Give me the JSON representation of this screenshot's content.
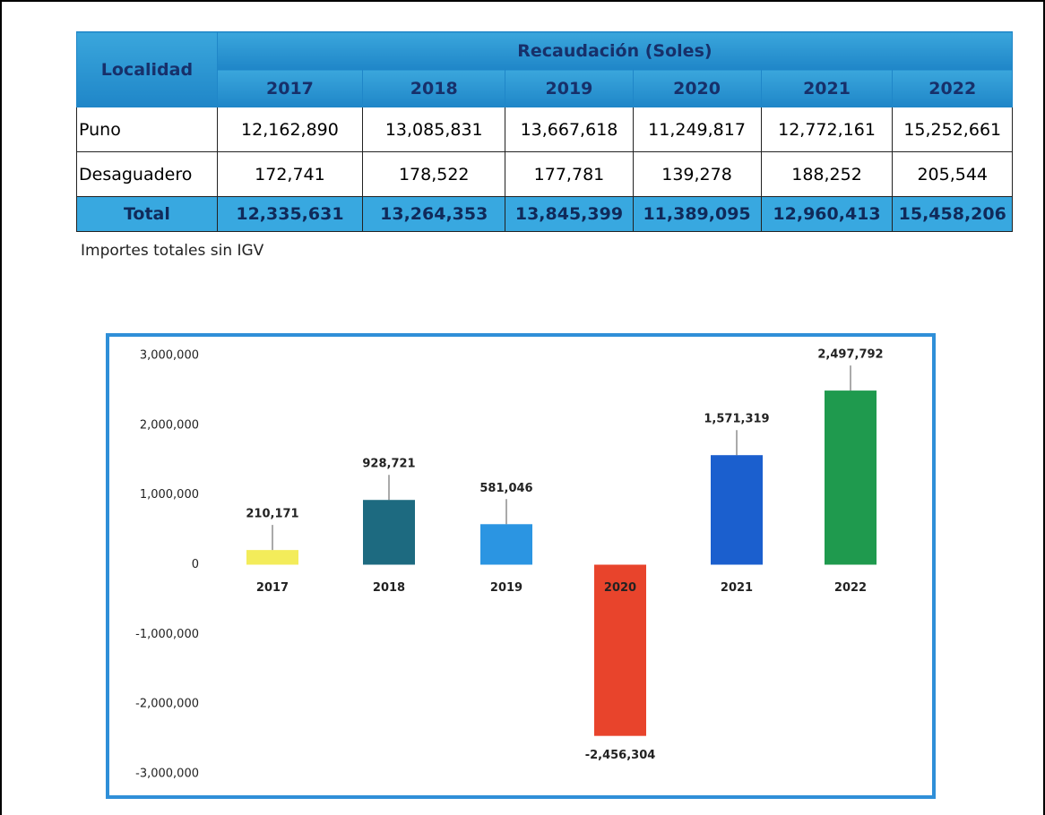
{
  "table": {
    "header": {
      "row_label": "Localidad",
      "group": "Recaudación (Soles)",
      "years": [
        "2017",
        "2018",
        "2019",
        "2020",
        "2021",
        "2022"
      ]
    },
    "rows": [
      [
        "Puno",
        "12,162,890",
        "13,085,831",
        "13,667,618",
        "11,249,817",
        "12,772,161",
        "15,252,661"
      ],
      [
        "Desaguadero",
        "172,741",
        "178,522",
        "177,781",
        "139,278",
        "188,252",
        "205,544"
      ],
      [
        "Total",
        "12,335,631",
        "13,264,353",
        "13,845,399",
        "11,389,095",
        "12,960,413",
        "15,458,206"
      ]
    ]
  },
  "note": "Importes totales sin IGV",
  "chart_data": {
    "type": "bar",
    "categories": [
      "2017",
      "2018",
      "2019",
      "2020",
      "2021",
      "2022"
    ],
    "values": [
      210171,
      928721,
      581046,
      -2456304,
      1571319,
      2497792
    ],
    "value_labels": [
      "210,171",
      "928,721",
      "581,046",
      "-2,456,304",
      "1,571,319",
      "2,497,792"
    ],
    "colors": [
      "#f3ec5a",
      "#1d6a80",
      "#2b95e2",
      "#e8442c",
      "#1b5fce",
      "#1f9a4e"
    ],
    "ylim": [
      -3000000,
      3000000
    ],
    "yticks": [
      {
        "value": 3000000,
        "label": "3,000,000"
      },
      {
        "value": 2000000,
        "label": "2,000,000"
      },
      {
        "value": 1000000,
        "label": "1,000,000"
      },
      0,
      {
        "value": -1000000,
        "label": "-1,000,000"
      },
      {
        "value": -2000000,
        "label": "-2,000,000"
      },
      {
        "value": -3000000,
        "label": "-3,000,000"
      }
    ]
  }
}
